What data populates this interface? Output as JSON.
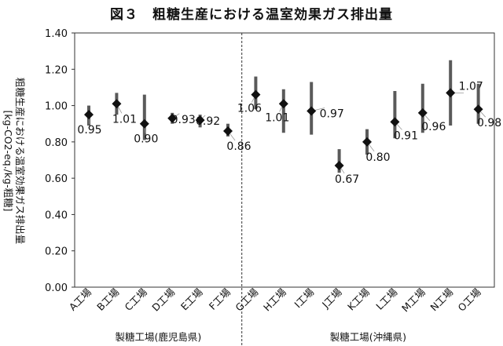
{
  "chart_data": {
    "type": "scatter",
    "title": "図３　粗糖生産における温室効果ガス排出量",
    "ylabel_line1": "粗糖生産における温室効果ガス排出量",
    "ylabel_line2": "[kg-CO2-eq./kg-粗糖]",
    "ylim": [
      0.0,
      1.4
    ],
    "yticks": [
      "0.00",
      "0.20",
      "0.40",
      "0.60",
      "0.80",
      "1.00",
      "1.20",
      "1.40"
    ],
    "grid": false,
    "categories": [
      "A工場",
      "B工場",
      "C工場",
      "D工場",
      "E工場",
      "F工場",
      "G工場",
      "H工場",
      "I工場",
      "J工場",
      "K工場",
      "L工場",
      "M工場",
      "N工場",
      "O工場"
    ],
    "values": [
      0.95,
      1.01,
      0.9,
      0.93,
      0.92,
      0.86,
      1.06,
      1.01,
      0.97,
      0.67,
      0.8,
      0.91,
      0.96,
      1.07,
      0.98
    ],
    "value_labels": [
      "0.95",
      "1.01",
      "0.90",
      "0.93",
      "0.92",
      "0.86",
      "1.06",
      "1.01",
      "0.97",
      "0.67",
      "0.80",
      "0.91",
      "0.96",
      "1.07",
      "0.98"
    ],
    "ranges": [
      [
        0.89,
        1.0
      ],
      [
        0.95,
        1.07
      ],
      [
        0.81,
        1.06
      ],
      [
        0.9,
        0.96
      ],
      [
        0.88,
        0.95
      ],
      [
        0.83,
        0.9
      ],
      [
        0.98,
        1.16
      ],
      [
        0.85,
        1.09
      ],
      [
        0.84,
        1.13
      ],
      [
        0.63,
        0.76
      ],
      [
        0.73,
        0.87
      ],
      [
        0.82,
        1.08
      ],
      [
        0.85,
        1.12
      ],
      [
        0.89,
        1.25
      ],
      [
        0.9,
        1.12
      ]
    ],
    "groups": [
      {
        "label": "製糖工場(鹿児島県)",
        "count": 6
      },
      {
        "label": "製糖工場(沖縄県)",
        "count": 9
      }
    ],
    "colors": {
      "range_bar": "#5a5a5a",
      "marker": "#111111",
      "leader": "#999999",
      "axis": "#333333"
    }
  }
}
